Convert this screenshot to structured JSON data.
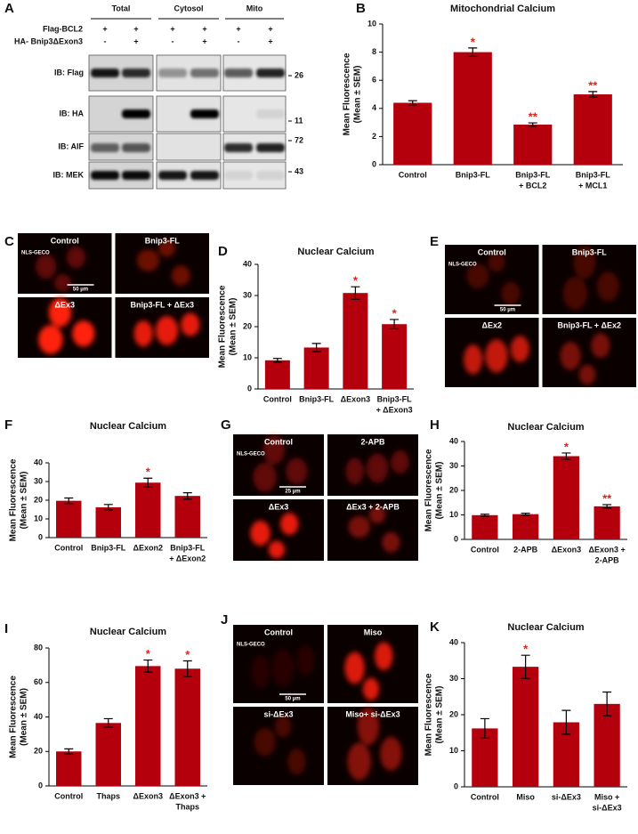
{
  "chart_data": [
    {
      "type": "bar",
      "panel": "B",
      "title": "Mitochondrial Calcium",
      "ylabel": [
        "Mean Fluorescence",
        "(Mean ± SEM)"
      ],
      "categories": [
        [
          "Control"
        ],
        [
          "Bnip3-FL"
        ],
        [
          "Bnip3-FL",
          "+ BCL2"
        ],
        [
          "Bnip3-FL",
          "+ MCL1"
        ]
      ],
      "values": [
        4.4,
        8.0,
        2.85,
        5.0
      ],
      "errors": [
        0.15,
        0.3,
        0.12,
        0.2
      ],
      "significance": [
        null,
        "*",
        "**",
        "**"
      ],
      "color": "#b3000c",
      "ylim": [
        0,
        10
      ],
      "yticks": [
        0,
        2,
        4,
        6,
        8,
        10
      ]
    },
    {
      "type": "bar",
      "panel": "D",
      "title": "Nuclear Calcium",
      "ylabel": [
        "Mean Fluorescence",
        "(Mean ± SEM)"
      ],
      "categories": [
        [
          "Control"
        ],
        [
          "Bnip3-FL"
        ],
        [
          "ΔExon3"
        ],
        [
          "Bnip3-FL",
          "+ ΔExon3"
        ]
      ],
      "values": [
        9.2,
        13.3,
        30.8,
        20.8
      ],
      "errors": [
        0.6,
        1.3,
        2.0,
        1.5
      ],
      "significance": [
        null,
        null,
        "*",
        "*"
      ],
      "color": "#b3000c",
      "ylim": [
        0,
        40
      ],
      "yticks": [
        0,
        10,
        20,
        30,
        40
      ]
    },
    {
      "type": "bar",
      "panel": "F",
      "title": "Nuclear Calcium",
      "ylabel": [
        "Mean Fluorescence",
        "(Mean ± SEM)"
      ],
      "categories": [
        [
          "Control"
        ],
        [
          "Bnip3-FL"
        ],
        [
          "ΔExon2"
        ],
        [
          "Bnip3-FL",
          "+ ΔExon2"
        ]
      ],
      "values": [
        19.7,
        16.2,
        29.4,
        22.3
      ],
      "errors": [
        1.5,
        1.5,
        2.4,
        1.7
      ],
      "significance": [
        null,
        null,
        "*",
        null
      ],
      "color": "#b3000c",
      "ylim": [
        0,
        40
      ],
      "yticks": [
        0,
        10,
        20,
        30,
        40
      ]
    },
    {
      "type": "bar",
      "panel": "H",
      "title": "Nuclear Calcium",
      "ylabel": [
        "Mean Fluorescence",
        "(Mean ± SEM)"
      ],
      "categories": [
        [
          "Control"
        ],
        [
          "2-APB"
        ],
        [
          "ΔExon3"
        ],
        [
          "ΔExon3 +",
          "2-APB"
        ]
      ],
      "values": [
        9.9,
        10.3,
        34.0,
        13.5
      ],
      "errors": [
        0.4,
        0.4,
        1.3,
        0.7
      ],
      "significance": [
        null,
        null,
        "*",
        "**"
      ],
      "color": "#b3000c",
      "ylim": [
        0,
        40
      ],
      "yticks": [
        0,
        10,
        20,
        30,
        40
      ]
    },
    {
      "type": "bar",
      "panel": "I",
      "title": "Nuclear Calcium",
      "ylabel": [
        "Mean Fluorescence",
        "(Mean ± SEM)"
      ],
      "categories": [
        [
          "Control"
        ],
        [
          "Thaps"
        ],
        [
          "ΔExon3"
        ],
        [
          "ΔExon3 +",
          "Thaps"
        ]
      ],
      "values": [
        20.0,
        36.5,
        69.5,
        68.0
      ],
      "errors": [
        1.5,
        2.5,
        3.5,
        4.5
      ],
      "significance": [
        null,
        null,
        "*",
        "*"
      ],
      "color": "#b3000c",
      "ylim": [
        0,
        80
      ],
      "yticks": [
        0,
        20,
        40,
        60,
        80
      ]
    },
    {
      "type": "bar",
      "panel": "K",
      "title": "Nuclear Calcium",
      "ylabel": [
        "Mean Fluorescence",
        "(Mean ± SEM)"
      ],
      "categories": [
        [
          "Control"
        ],
        [
          "Miso"
        ],
        [
          "si-ΔEx3"
        ],
        [
          "Miso +",
          "si-ΔEx3"
        ]
      ],
      "values": [
        16.2,
        33.3,
        17.9,
        23.0
      ],
      "errors": [
        2.7,
        3.2,
        3.3,
        3.3
      ],
      "significance": [
        null,
        "*",
        null,
        null
      ],
      "color": "#b3000c",
      "ylim": [
        0,
        40
      ],
      "yticks": [
        0,
        10,
        20,
        30,
        40
      ]
    }
  ],
  "blot": {
    "panel": "A",
    "groups": [
      "Total",
      "Cytosol",
      "Mito"
    ],
    "conditions": [
      {
        "label": "Flag-BCL2",
        "signs": [
          "+",
          "+",
          "+",
          "+",
          "+",
          "+"
        ]
      },
      {
        "label": "HA- Bnip3ΔExon3",
        "signs": [
          "-",
          "+",
          "-",
          "+",
          "-",
          "+"
        ]
      }
    ],
    "rows": [
      {
        "label": "IB: Flag",
        "marker": "26"
      },
      {
        "label": "IB: HA",
        "marker": "11"
      },
      {
        "label": "IB: AIF",
        "marker": "72"
      },
      {
        "label": "IB: MEK",
        "marker": "43"
      }
    ]
  },
  "micrographs": [
    {
      "panel": "C",
      "label": "NLS-GECO",
      "scale": "50 µm",
      "captions": [
        "Control",
        "Bnip3-FL",
        "ΔEx3",
        "Bnip3-FL + ΔEx3"
      ]
    },
    {
      "panel": "E",
      "label": "NLS-GECO",
      "scale": "50 µm",
      "captions": [
        "Control",
        "Bnip3-FL",
        "ΔEx2",
        "Bnip3-FL + ΔEx2"
      ]
    },
    {
      "panel": "G",
      "label": "NLS-GECO",
      "scale": "25 µm",
      "captions": [
        "Control",
        "2-APB",
        "ΔEx3",
        "ΔEx3 + 2-APB"
      ]
    },
    {
      "panel": "J",
      "label": "NLS-GECO",
      "scale": "50 µm",
      "captions": [
        "Control",
        "Miso",
        "si-ΔEx3",
        "Miso+ si-ΔEx3"
      ]
    }
  ]
}
